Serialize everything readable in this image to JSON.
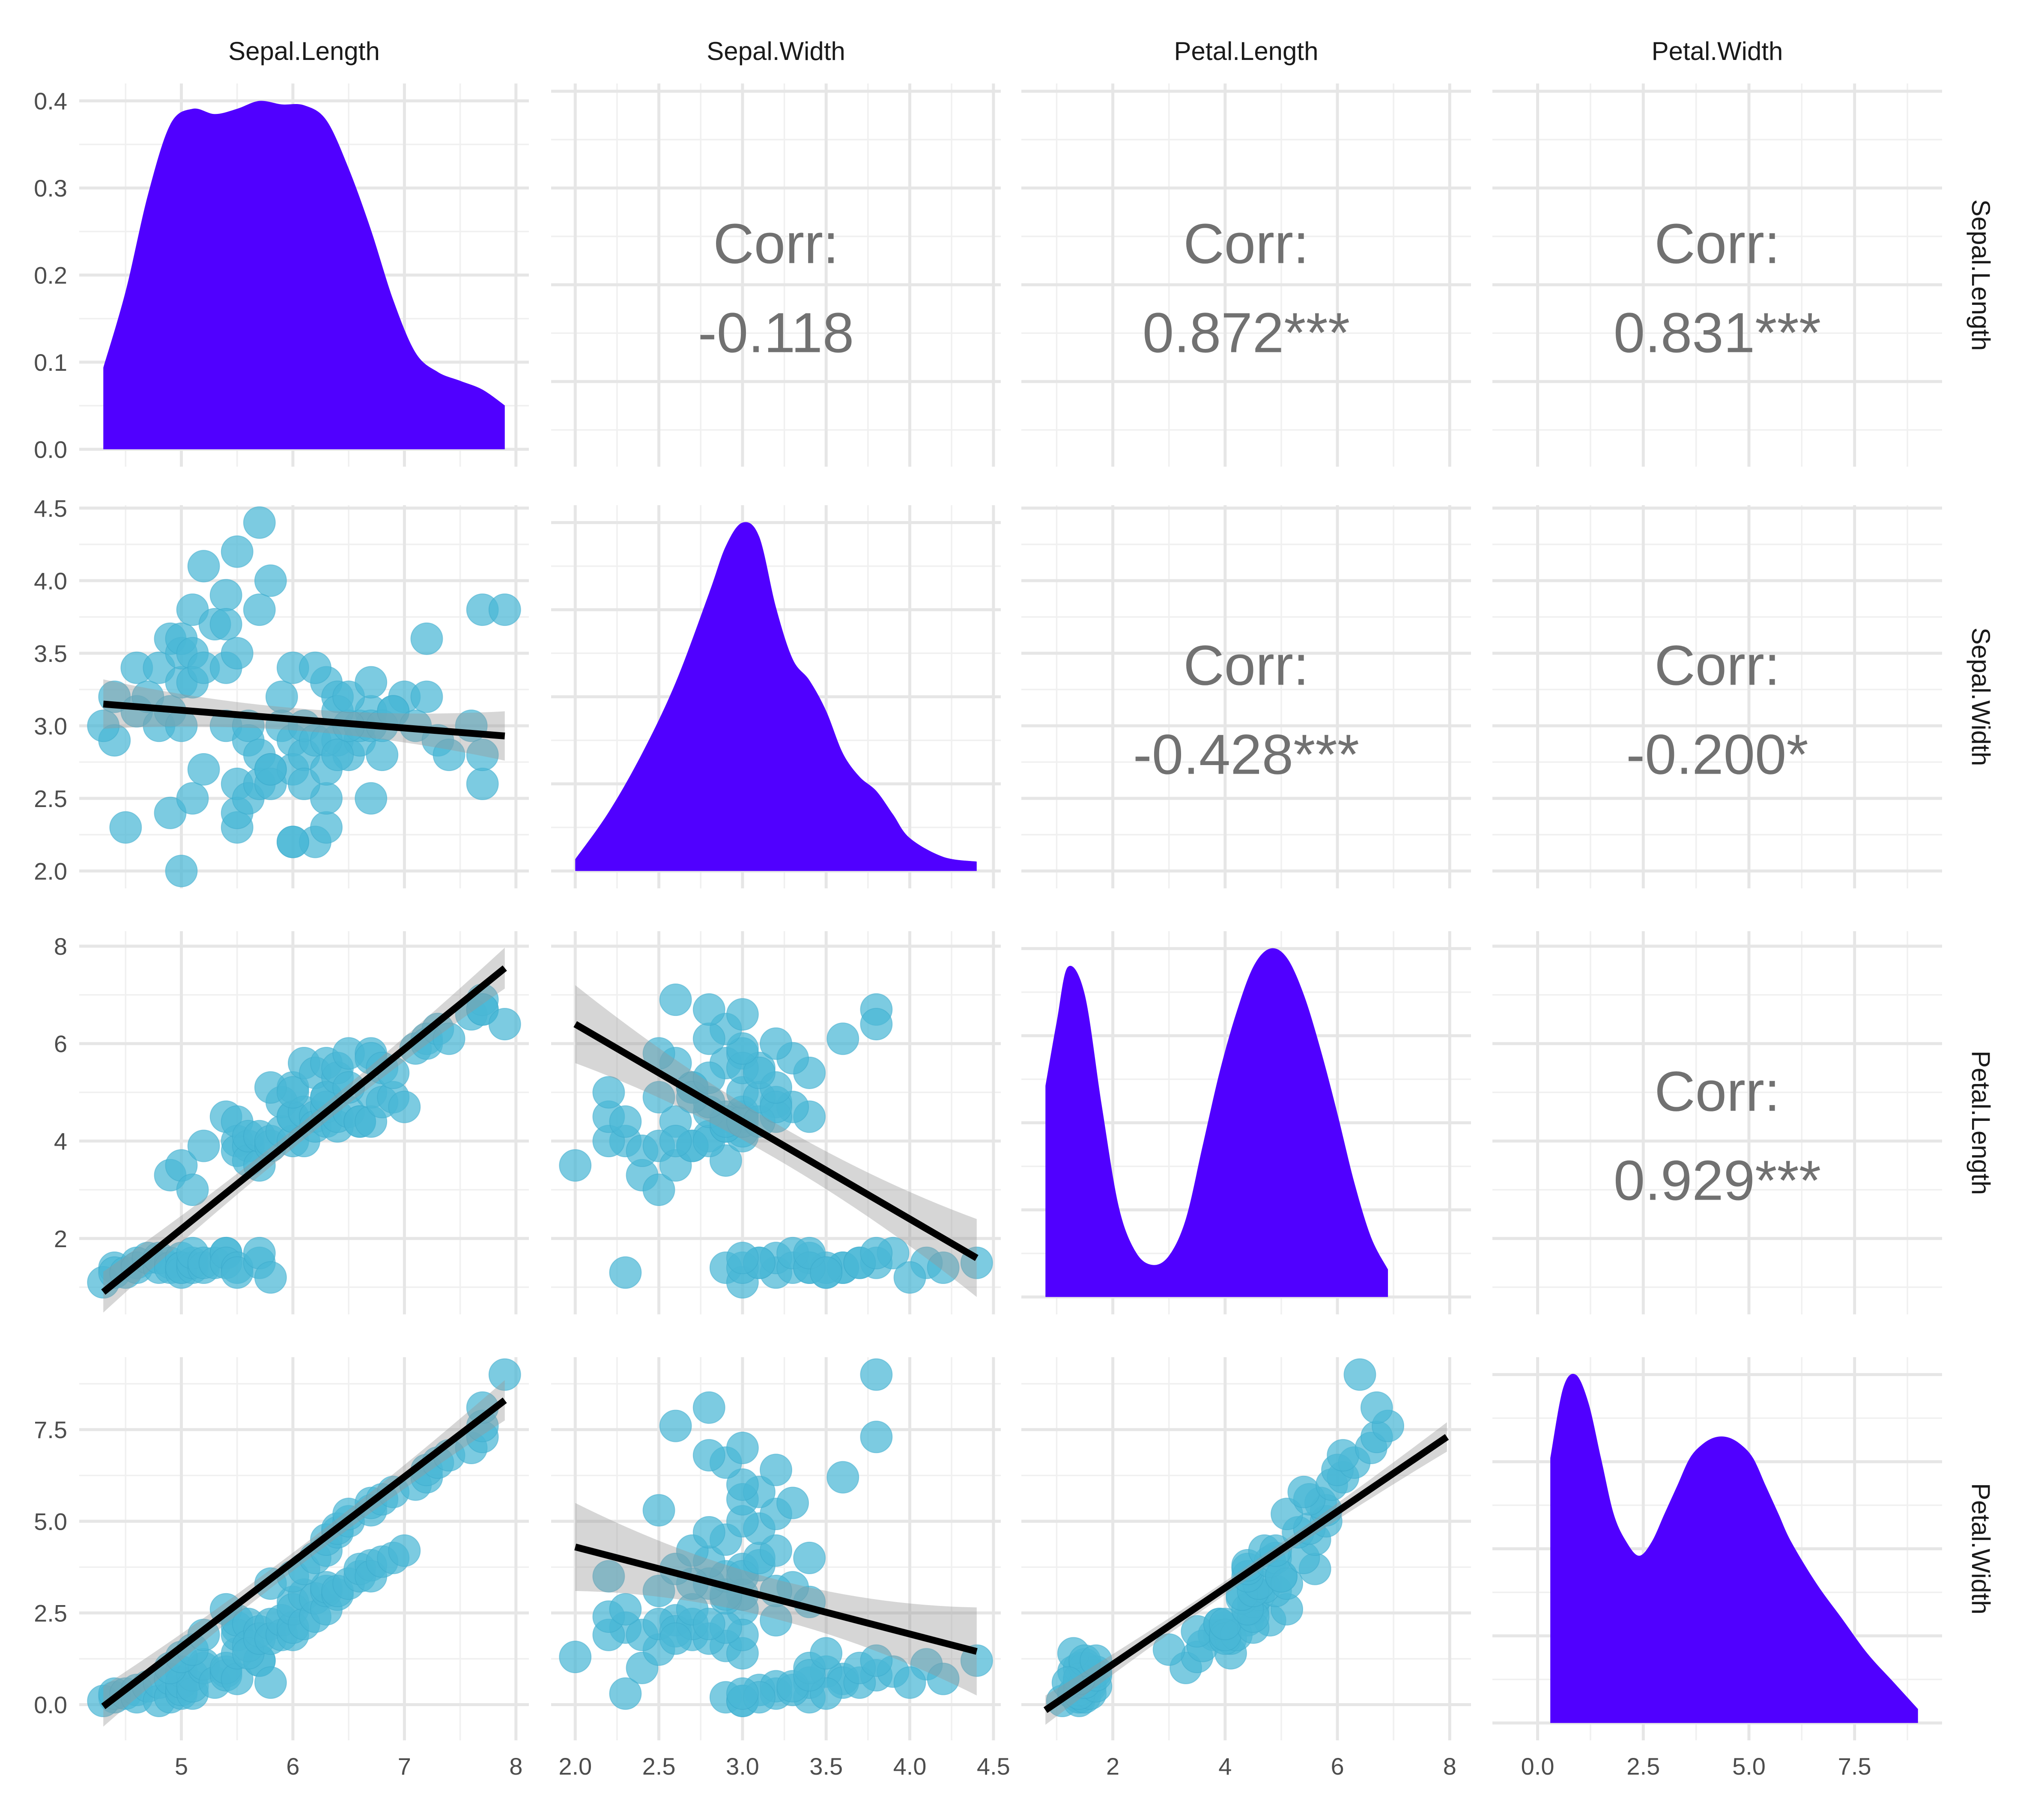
{
  "chart_data": {
    "type": "pairs",
    "variables": [
      "Sepal.Length",
      "Sepal.Width",
      "Petal.Length",
      "Petal.Width"
    ],
    "colors": {
      "density_fill": "#5000FF",
      "point": "#4AB7D6",
      "regression_line": "#000000",
      "confidence_band": "#999999",
      "corr_text": "#717171",
      "grid": "#E6E6E6"
    },
    "grid": true,
    "axes": {
      "Sepal.Length": {
        "lim": [
          4.3,
          7.9
        ],
        "ticks": [
          5,
          6,
          7,
          8
        ],
        "tick_labels": [
          "5",
          "6",
          "7",
          "8"
        ]
      },
      "Sepal.Width": {
        "lim": [
          2.0,
          4.4
        ],
        "ticks": [
          2.0,
          2.5,
          3.0,
          3.5,
          4.0,
          4.5
        ],
        "tick_labels": [
          "2.0",
          "2.5",
          "3.0",
          "3.5",
          "4.0",
          "4.5"
        ]
      },
      "Petal.Length": {
        "lim": [
          0.8,
          7.95
        ],
        "ticks": [
          2,
          4,
          6,
          8
        ],
        "tick_labels": [
          "2",
          "4",
          "6",
          "8"
        ]
      },
      "Petal.Width": {
        "lim": [
          -0.5,
          9.0
        ],
        "ticks": [
          0.0,
          2.5,
          5.0,
          7.5
        ],
        "tick_labels": [
          "0.0",
          "2.5",
          "5.0",
          "7.5"
        ]
      }
    },
    "density_axis": {
      "lim": [
        0,
        0.4
      ],
      "ticks": [
        0.0,
        0.1,
        0.2,
        0.3,
        0.4
      ],
      "tick_labels": [
        "0.0",
        "0.1",
        "0.2",
        "0.3",
        "0.4"
      ]
    },
    "correlations": [
      {
        "row": 0,
        "col": 1,
        "label": "Corr:",
        "value": "-0.118"
      },
      {
        "row": 0,
        "col": 2,
        "label": "Corr:",
        "value": "0.872***"
      },
      {
        "row": 0,
        "col": 3,
        "label": "Corr:",
        "value": "0.831***"
      },
      {
        "row": 1,
        "col": 2,
        "label": "Corr:",
        "value": "-0.428***"
      },
      {
        "row": 1,
        "col": 3,
        "label": "Corr:",
        "value": "-0.200*"
      },
      {
        "row": 2,
        "col": 3,
        "label": "Corr:",
        "value": "0.929***"
      }
    ],
    "densities": [
      {
        "variable": "Sepal.Length",
        "x": [
          4.3,
          4.5,
          4.7,
          4.9,
          5.1,
          5.3,
          5.5,
          5.7,
          5.9,
          6.1,
          6.3,
          6.5,
          6.7,
          6.9,
          7.1,
          7.3,
          7.5,
          7.7,
          7.9
        ],
        "y": [
          0.093,
          0.18,
          0.29,
          0.37,
          0.388,
          0.382,
          0.388,
          0.397,
          0.393,
          0.392,
          0.375,
          0.32,
          0.25,
          0.17,
          0.11,
          0.088,
          0.078,
          0.068,
          0.05
        ]
      },
      {
        "variable": "Sepal.Width",
        "x": [
          2.0,
          2.2,
          2.4,
          2.6,
          2.8,
          2.9,
          3.0,
          3.1,
          3.2,
          3.3,
          3.4,
          3.5,
          3.6,
          3.7,
          3.8,
          3.9,
          4.0,
          4.2,
          4.4
        ],
        "y": [
          0.05,
          0.25,
          0.5,
          0.8,
          1.18,
          1.38,
          1.48,
          1.42,
          1.12,
          0.9,
          0.81,
          0.68,
          0.5,
          0.4,
          0.34,
          0.24,
          0.14,
          0.06,
          0.04
        ]
      },
      {
        "variable": "Petal.Length",
        "x": [
          0.8,
          1.0,
          1.2,
          1.5,
          1.8,
          2.1,
          2.4,
          2.7,
          3.0,
          3.3,
          3.6,
          3.9,
          4.2,
          4.5,
          4.8,
          5.1,
          5.4,
          5.7,
          6.0,
          6.3,
          6.6,
          6.9
        ],
        "y": [
          0.46,
          0.6,
          0.72,
          0.66,
          0.42,
          0.2,
          0.1,
          0.07,
          0.09,
          0.17,
          0.33,
          0.49,
          0.62,
          0.72,
          0.76,
          0.74,
          0.66,
          0.54,
          0.4,
          0.25,
          0.13,
          0.06
        ]
      },
      {
        "variable": "Petal.Width",
        "x": [
          0.3,
          0.6,
          0.9,
          1.2,
          1.5,
          1.8,
          2.1,
          2.4,
          2.7,
          3.0,
          3.3,
          3.6,
          3.9,
          4.2,
          4.5,
          4.8,
          5.1,
          5.4,
          5.7,
          6.0,
          6.6,
          7.2,
          7.8,
          8.4,
          9.0
        ],
        "y": [
          0.19,
          0.24,
          0.25,
          0.23,
          0.19,
          0.15,
          0.13,
          0.12,
          0.13,
          0.15,
          0.17,
          0.19,
          0.2,
          0.205,
          0.205,
          0.2,
          0.19,
          0.17,
          0.15,
          0.13,
          0.1,
          0.075,
          0.05,
          0.03,
          0.01
        ]
      }
    ],
    "points": {
      "Sepal.Length": [
        4.4,
        4.3,
        4.4,
        4.5,
        4.6,
        4.6,
        4.7,
        4.8,
        4.8,
        4.9,
        4.9,
        5.0,
        5.0,
        5.0,
        5.0,
        5.1,
        5.1,
        5.1,
        5.2,
        5.2,
        5.3,
        5.4,
        5.4,
        5.4,
        5.5,
        5.5,
        5.7,
        5.7,
        5.8,
        4.9,
        5.0,
        5.1,
        5.2,
        5.4,
        5.5,
        5.5,
        5.5,
        5.6,
        5.6,
        5.6,
        5.7,
        5.7,
        5.8,
        5.8,
        5.9,
        5.9,
        6.0,
        6.0,
        6.0,
        6.0,
        6.1,
        6.1,
        6.2,
        6.2,
        6.3,
        6.3,
        6.3,
        6.4,
        6.4,
        6.5,
        6.6,
        6.6,
        6.7,
        6.7,
        6.8,
        6.9,
        7.0,
        5.8,
        6.0,
        6.1,
        6.2,
        6.3,
        6.3,
        6.4,
        6.4,
        6.5,
        6.5,
        6.7,
        6.7,
        6.8,
        6.9,
        7.1,
        7.2,
        7.2,
        7.3,
        7.4,
        7.6,
        7.7,
        7.7,
        7.7,
        7.9
      ],
      "Sepal.Width": [
        2.9,
        3.0,
        3.2,
        2.3,
        3.1,
        3.4,
        3.2,
        3.0,
        3.4,
        3.1,
        3.6,
        3.0,
        3.3,
        3.5,
        3.6,
        3.5,
        3.8,
        3.3,
        3.4,
        4.1,
        3.7,
        3.9,
        3.4,
        3.7,
        4.2,
        3.5,
        4.4,
        3.8,
        4.0,
        2.4,
        2.0,
        2.5,
        2.7,
        3.0,
        2.3,
        2.4,
        2.6,
        2.5,
        2.9,
        3.0,
        2.6,
        2.8,
        2.7,
        2.6,
        3.0,
        3.2,
        2.2,
        2.9,
        3.4,
        2.7,
        2.8,
        3.0,
        2.2,
        2.9,
        2.3,
        2.5,
        3.3,
        2.9,
        3.2,
        2.8,
        2.9,
        3.0,
        3.1,
        3.0,
        2.8,
        3.1,
        3.2,
        2.7,
        2.2,
        2.6,
        3.4,
        2.7,
        2.9,
        2.8,
        3.1,
        3.0,
        3.2,
        2.5,
        3.3,
        3.0,
        3.1,
        3.0,
        3.6,
        3.2,
        2.9,
        2.8,
        3.0,
        3.8,
        2.6,
        2.8,
        3.8
      ],
      "Petal.Length": [
        1.4,
        1.1,
        1.3,
        1.3,
        1.5,
        1.4,
        1.6,
        1.4,
        1.6,
        1.5,
        1.4,
        1.6,
        1.4,
        1.3,
        1.4,
        1.4,
        1.5,
        1.7,
        1.4,
        1.5,
        1.5,
        1.7,
        1.7,
        1.5,
        1.4,
        1.3,
        1.5,
        1.7,
        1.2,
        3.3,
        3.5,
        3.0,
        3.9,
        4.5,
        4.0,
        3.8,
        4.4,
        3.9,
        3.6,
        4.1,
        3.5,
        4.1,
        3.9,
        4.0,
        4.2,
        4.8,
        4.0,
        4.5,
        4.5,
        5.1,
        4.0,
        4.6,
        4.5,
        4.3,
        4.4,
        4.9,
        4.7,
        4.3,
        4.5,
        4.6,
        4.4,
        4.4,
        4.4,
        5.0,
        4.8,
        4.9,
        4.7,
        5.1,
        5.0,
        5.6,
        5.4,
        4.9,
        5.6,
        5.3,
        5.5,
        5.8,
        5.1,
        5.8,
        5.7,
        5.5,
        5.4,
        5.9,
        6.1,
        6.0,
        6.3,
        6.1,
        6.6,
        6.7,
        6.9,
        6.7,
        6.4
      ],
      "Petal.Width": [
        0.2,
        0.1,
        0.3,
        0.3,
        0.4,
        0.2,
        0.5,
        0.1,
        0.6,
        0.2,
        0.7,
        0.3,
        0.4,
        0.9,
        0.6,
        0.3,
        0.8,
        0.5,
        1.0,
        1.1,
        0.6,
        0.9,
        0.8,
        1.0,
        0.7,
        1.4,
        1.2,
        1.2,
        0.6,
        1.0,
        1.3,
        1.5,
        1.9,
        2.6,
        2.1,
        1.9,
        2.3,
        2.2,
        1.6,
        1.4,
        2.0,
        1.8,
        2.2,
        1.8,
        1.9,
        2.3,
        1.9,
        2.1,
        2.8,
        2.6,
        2.2,
        3.0,
        2.4,
        2.9,
        2.6,
        3.1,
        3.2,
        3.0,
        3.1,
        3.3,
        3.5,
        3.7,
        3.8,
        3.5,
        3.9,
        4.0,
        4.2,
        3.3,
        3.5,
        3.7,
        4.0,
        4.2,
        4.5,
        4.7,
        4.8,
        5.0,
        5.2,
        5.3,
        5.5,
        5.6,
        5.8,
        6.0,
        6.2,
        6.4,
        6.6,
        6.8,
        7.0,
        7.3,
        7.6,
        8.1,
        9.0
      ]
    },
    "fits": [
      {
        "x": "Sepal.Length",
        "y": "Sepal.Width",
        "y_at_xmin": 3.15,
        "y_at_xmax": 2.93,
        "band_halfwidth": 0.17
      },
      {
        "x": "Sepal.Length",
        "y": "Petal.Length",
        "y_at_xmin": 0.9,
        "y_at_xmax": 7.55,
        "band_halfwidth": 0.42
      },
      {
        "x": "Sepal.Length",
        "y": "Petal.Width",
        "y_at_xmin": -0.05,
        "y_at_xmax": 8.3,
        "band_halfwidth": 0.55
      },
      {
        "x": "Sepal.Width",
        "y": "Petal.Length",
        "y_at_xmin": 6.4,
        "y_at_xmax": 1.6,
        "band_halfwidth": 0.8
      },
      {
        "x": "Sepal.Width",
        "y": "Petal.Width",
        "y_at_xmin": 4.3,
        "y_at_xmax": 1.45,
        "band_halfwidth": 1.2
      },
      {
        "x": "Petal.Length",
        "y": "Petal.Width",
        "y_at_xmin": -0.15,
        "y_at_xmax": 7.3,
        "band_halfwidth": 0.4
      }
    ]
  }
}
